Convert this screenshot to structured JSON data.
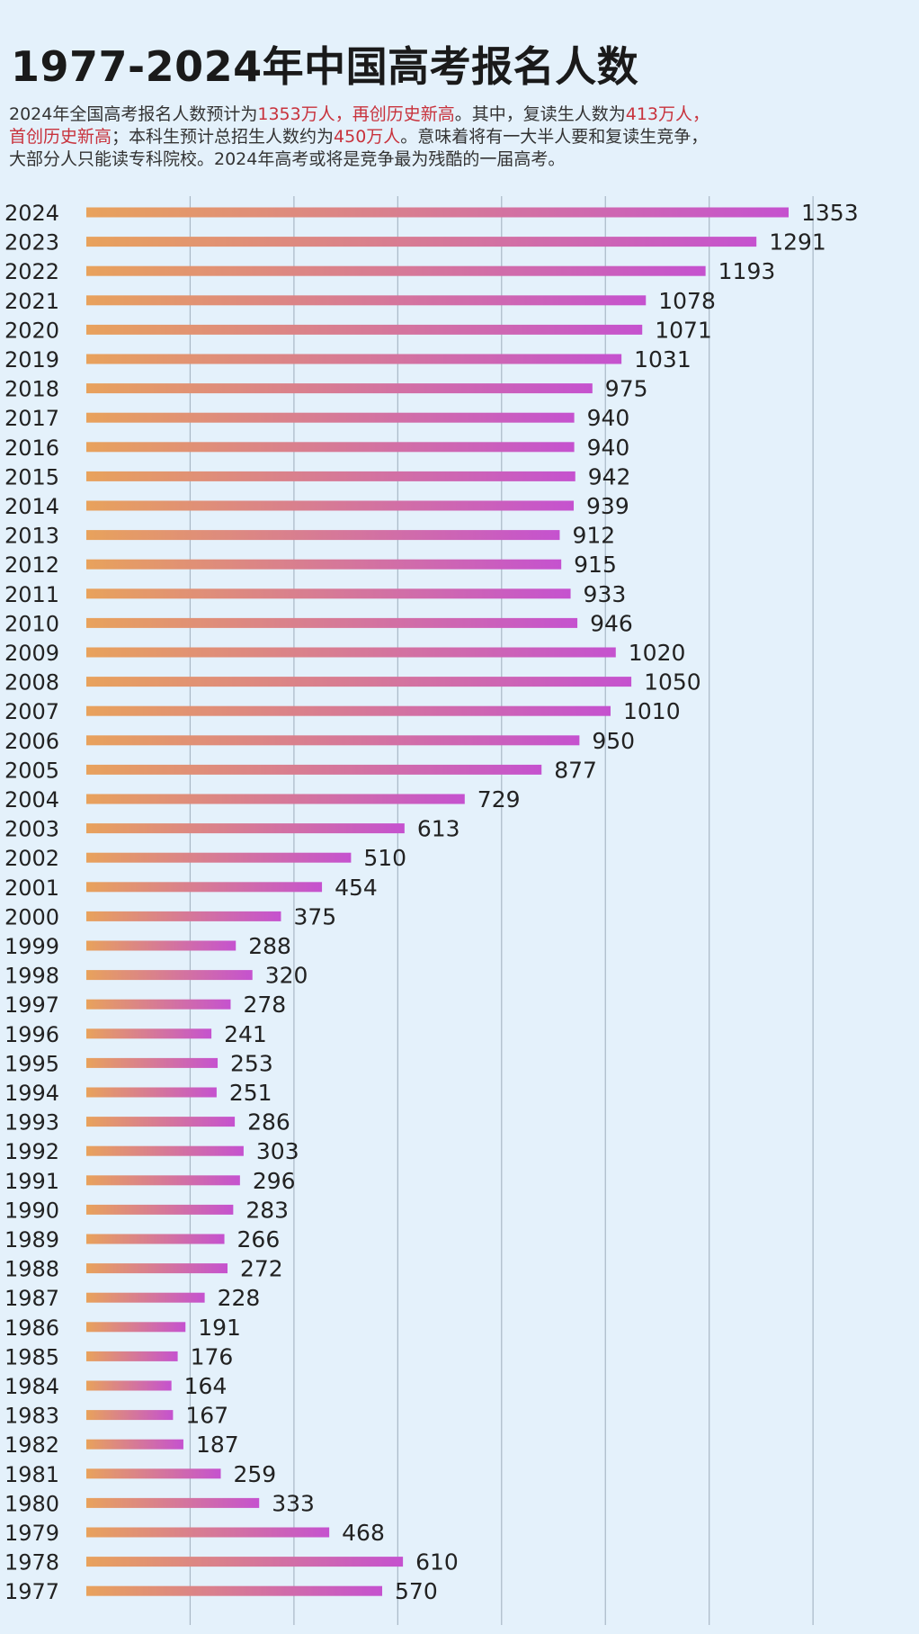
{
  "header": {
    "title": "1977-2024年中国高考报名人数",
    "intro_lines": [
      [
        {
          "text": "2024年全国高考报名人数预计为",
          "highlight": false
        },
        {
          "text": "1353万人，再创历史新高",
          "highlight": true
        },
        {
          "text": "。其中，复读生人数为",
          "highlight": false
        },
        {
          "text": "413万人，",
          "highlight": true
        }
      ],
      [
        {
          "text": "首创历史新高",
          "highlight": true
        },
        {
          "text": "；本科生预计总招生人数约为",
          "highlight": false
        },
        {
          "text": "450万人",
          "highlight": true
        },
        {
          "text": "。意味着将有一大半人要和复读生竞争，",
          "highlight": false
        }
      ],
      [
        {
          "text": "大部分人只能读专科院校。2024年高考或将是竞争最为残酷的一届高考。",
          "highlight": false
        }
      ]
    ]
  },
  "colors": {
    "background": "#e4f1fb",
    "bar_start": "#e8a25c",
    "bar_end": "#c552cf",
    "grid": "#a9b8c6",
    "highlight_text": "#c8323c"
  },
  "chart_data": {
    "type": "bar",
    "orientation": "horizontal",
    "categories": [
      "2024",
      "2023",
      "2022",
      "2021",
      "2020",
      "2019",
      "2018",
      "2017",
      "2016",
      "2015",
      "2014",
      "2013",
      "2012",
      "2011",
      "2010",
      "2009",
      "2008",
      "2007",
      "2006",
      "2005",
      "2004",
      "2003",
      "2002",
      "2001",
      "2000",
      "1999",
      "1998",
      "1997",
      "1996",
      "1995",
      "1994",
      "1993",
      "1992",
      "1991",
      "1990",
      "1989",
      "1988",
      "1987",
      "1986",
      "1985",
      "1984",
      "1983",
      "1982",
      "1981",
      "1980",
      "1979",
      "1978",
      "1977"
    ],
    "values": [
      1353,
      1291,
      1193,
      1078,
      1071,
      1031,
      975,
      940,
      940,
      942,
      939,
      912,
      915,
      933,
      946,
      1020,
      1050,
      1010,
      950,
      877,
      729,
      613,
      510,
      454,
      375,
      288,
      320,
      278,
      241,
      253,
      251,
      286,
      303,
      296,
      283,
      266,
      272,
      228,
      191,
      176,
      164,
      167,
      187,
      259,
      333,
      468,
      610,
      570
    ],
    "xlim": [
      0,
      1400
    ],
    "grid": true,
    "grid_step": 200,
    "data_labels": true
  }
}
